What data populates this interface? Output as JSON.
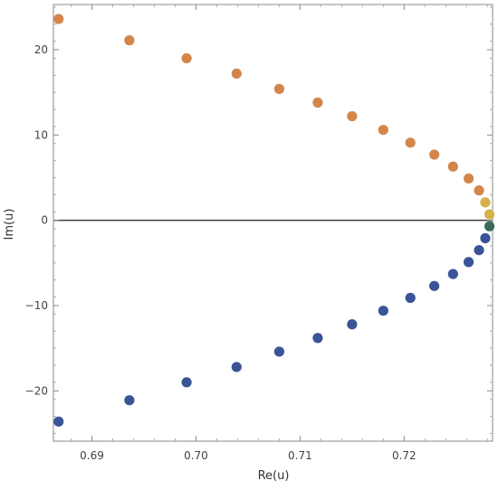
{
  "chart_data": {
    "type": "scatter",
    "title": "",
    "xlabel": "Re(u)",
    "ylabel": "Im(u)",
    "xlim": [
      0.6863,
      0.7285
    ],
    "ylim": [
      -25.9,
      25.3
    ],
    "grid": false,
    "zero_line": true,
    "x_ticks": [
      {
        "value": 0.69,
        "label": "0.69"
      },
      {
        "value": 0.7,
        "label": "0.70"
      },
      {
        "value": 0.71,
        "label": "0.71"
      },
      {
        "value": 0.72,
        "label": "0.72"
      }
    ],
    "y_ticks": [
      {
        "value": -20,
        "label": "−20"
      },
      {
        "value": -10,
        "label": "−10"
      },
      {
        "value": 0,
        "label": "0"
      },
      {
        "value": 10,
        "label": "10"
      },
      {
        "value": 20,
        "label": "20"
      }
    ],
    "series": [
      {
        "color": "#D4864A",
        "points": [
          [
            0.6868,
            23.6
          ],
          [
            0.6936,
            21.1
          ],
          [
            0.6991,
            19.0
          ],
          [
            0.7039,
            17.2
          ],
          [
            0.708,
            15.4
          ],
          [
            0.7117,
            13.8
          ],
          [
            0.715,
            12.2
          ],
          [
            0.718,
            10.6
          ],
          [
            0.7206,
            9.1
          ],
          [
            0.7229,
            7.7
          ],
          [
            0.7247,
            6.3
          ],
          [
            0.7262,
            4.9
          ],
          [
            0.7272,
            3.5
          ]
        ]
      },
      {
        "color": "#D6B04A",
        "points": [
          [
            0.7278,
            2.1
          ],
          [
            0.7282,
            0.7
          ]
        ]
      },
      {
        "color": "#3C6A5A",
        "points": [
          [
            0.7282,
            -0.7
          ]
        ]
      },
      {
        "color": "#3A5496",
        "points": [
          [
            0.7278,
            -2.1
          ],
          [
            0.7272,
            -3.5
          ],
          [
            0.7262,
            -4.9
          ],
          [
            0.7247,
            -6.3
          ],
          [
            0.7229,
            -7.7
          ],
          [
            0.7206,
            -9.1
          ],
          [
            0.718,
            -10.6
          ],
          [
            0.715,
            -12.2
          ],
          [
            0.7117,
            -13.8
          ],
          [
            0.708,
            -15.4
          ],
          [
            0.7039,
            -17.2
          ],
          [
            0.6991,
            -19.0
          ],
          [
            0.6936,
            -21.1
          ],
          [
            0.6868,
            -23.6
          ]
        ]
      }
    ]
  }
}
